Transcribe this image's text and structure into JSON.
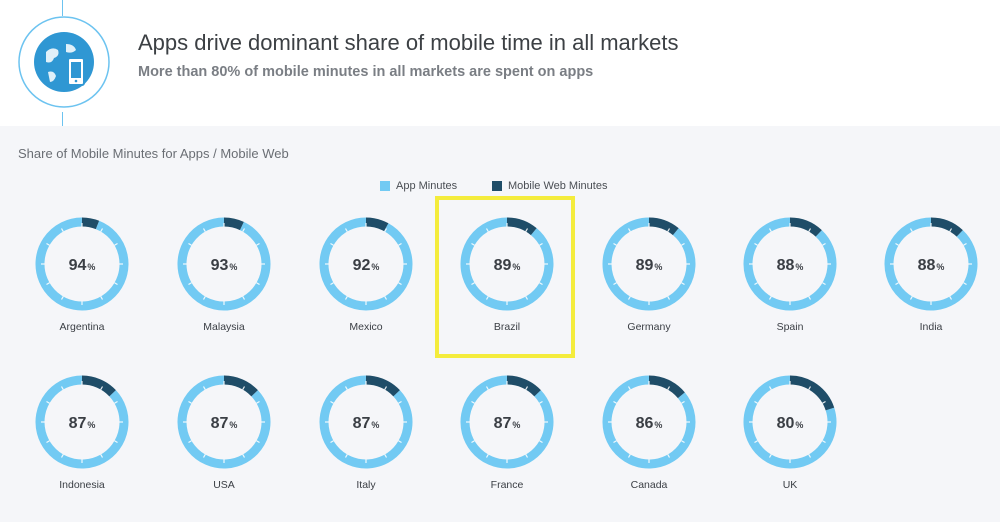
{
  "header": {
    "title": "Apps drive dominant share of mobile time in all markets",
    "subtitle": "More than 80% of mobile minutes in all markets are spent on apps",
    "icon": "globe-phone-icon"
  },
  "colors": {
    "app": "#72caf3",
    "web": "#1f4d68",
    "highlight": "#f4ec3c",
    "accent_line": "#6cc3f0"
  },
  "chart_data": {
    "type": "donut",
    "title": "Share of Mobile Minutes for Apps / Mobile Web",
    "legend": [
      "App Minutes",
      "Mobile Web Minutes"
    ],
    "value_suffix": "%",
    "highlighted": "Brazil",
    "items": [
      {
        "country": "Argentina",
        "app": 94
      },
      {
        "country": "Malaysia",
        "app": 93
      },
      {
        "country": "Mexico",
        "app": 92
      },
      {
        "country": "Brazil",
        "app": 89
      },
      {
        "country": "Germany",
        "app": 89
      },
      {
        "country": "Spain",
        "app": 88
      },
      {
        "country": "India",
        "app": 88
      },
      {
        "country": "Indonesia",
        "app": 87
      },
      {
        "country": "USA",
        "app": 87
      },
      {
        "country": "Italy",
        "app": 87
      },
      {
        "country": "France",
        "app": 87
      },
      {
        "country": "Canada",
        "app": 86
      },
      {
        "country": "UK",
        "app": 80
      }
    ]
  }
}
